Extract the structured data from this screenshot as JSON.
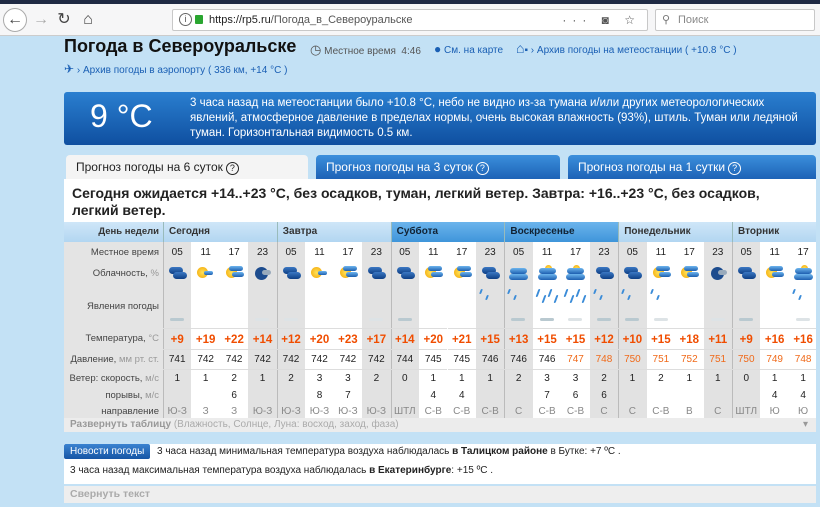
{
  "browser": {
    "url_host": "https://rp5.ru",
    "url_path": "/Погода_в_Североуральске",
    "search_placeholder": "Поиск"
  },
  "header": {
    "title": "Погода в Североуральске",
    "local_time_label": "Местное время",
    "local_time": "4:46",
    "map_link": "См. на карте",
    "station_archive": "Архив погоды на метеостанции ( +10.8 °C )",
    "airport_archive": "Архив погоды в аэропорту ( 336 км, +14 °C )"
  },
  "banner": {
    "temp": "9 °C",
    "text": "3 часа назад на метеостанции было +10.8 °C, небо не видно из-за тумана и/или других метеорологических явлений, атмосферное давление в пределах нормы, очень высокая влажность (93%), штиль. Туман или ледяной туман. Горизонтальная видимость 0.5 км."
  },
  "tabs": [
    {
      "label": "Прогноз погоды на 6 суток",
      "active": true
    },
    {
      "label": "Прогноз погоды на 3 суток",
      "active": false
    },
    {
      "label": "Прогноз погоды на 1 сутки",
      "active": false
    }
  ],
  "summary": "Сегодня ожидается +14..+23 °C, без осадков, туман, легкий ветер. Завтра: +16..+23 °C, без осадков, легкий ветер.",
  "forecast": {
    "labels": {
      "day": "День недели",
      "time": "Местное время",
      "cloud": "Облачность,",
      "cloud_unit": "%",
      "phen": "Явления погоды",
      "temp": "Температура,",
      "temp_unit": "°C",
      "pres": "Давление,",
      "pres_unit": "мм рт. ст.",
      "wind": "Ветер: скорость,",
      "wind_unit": "м/с",
      "gust": "порывы,",
      "gust_unit": "м/с",
      "dir": "направление"
    },
    "days": [
      {
        "name": "Сегодня",
        "cols": 4,
        "weekend": false
      },
      {
        "name": "Завтра",
        "cols": 4,
        "weekend": false
      },
      {
        "name": "Суббота",
        "cols": 4,
        "weekend": true
      },
      {
        "name": "Воскресенье",
        "cols": 4,
        "weekend": true
      },
      {
        "name": "Понедельник",
        "cols": 4,
        "weekend": false
      },
      {
        "name": "Вторник",
        "cols": 3,
        "weekend": false
      }
    ],
    "times": [
      "05",
      "11",
      "17",
      "23",
      "05",
      "11",
      "17",
      "23",
      "05",
      "11",
      "17",
      "23",
      "05",
      "11",
      "17",
      "23",
      "05",
      "11",
      "17",
      "23",
      "05",
      "11",
      "17"
    ],
    "clouds": [
      "cloudy",
      "sun-small-cloud",
      "sun-clouds",
      "night-cloud",
      "cloudy",
      "sun-small-cloud",
      "sun-clouds",
      "cloudy",
      "cloudy",
      "sun-clouds",
      "sun-clouds",
      "cloudy",
      "overcast",
      "overcast-sun",
      "overcast-sun",
      "cloudy",
      "cloudy",
      "sun-clouds",
      "sun-clouds",
      "night-cloud",
      "cloudy",
      "sun-clouds",
      "overcast-sun"
    ],
    "phenomena": [
      "fog",
      "",
      "",
      "light-fog",
      "light-fog",
      "",
      "",
      "light-fog",
      "fog",
      "",
      "",
      "rain",
      "rain-fog",
      "heavy-rain-fog",
      "heavy-rain-light-fog",
      "rain-fog",
      "rain-fog",
      "rain-light-fog",
      "",
      "light-fog",
      "fog",
      "",
      "rain-light-fog"
    ],
    "temps": [
      "+9",
      "+19",
      "+22",
      "+14",
      "+12",
      "+20",
      "+23",
      "+17",
      "+14",
      "+20",
      "+21",
      "+15",
      "+13",
      "+15",
      "+15",
      "+12",
      "+10",
      "+15",
      "+18",
      "+11",
      "+9",
      "+16",
      "+16"
    ],
    "pressure": [
      "741",
      "742",
      "742",
      "742",
      "742",
      "742",
      "742",
      "742",
      "744",
      "745",
      "745",
      "746",
      "746",
      "746",
      "747",
      "748",
      "750",
      "751",
      "752",
      "751",
      "750",
      "749",
      "748"
    ],
    "wind_speed": [
      "1",
      "1",
      "2",
      "1",
      "2",
      "3",
      "3",
      "2",
      "0",
      "1",
      "1",
      "1",
      "2",
      "3",
      "3",
      "2",
      "1",
      "2",
      "1",
      "1",
      "0",
      "1",
      "1"
    ],
    "gusts": [
      "",
      "",
      "6",
      "",
      "",
      "8",
      "7",
      "",
      "",
      "4",
      "4",
      "",
      "",
      "7",
      "6",
      "6",
      "",
      "",
      "",
      "",
      "",
      "4",
      "4"
    ],
    "direction": [
      "Ю-З",
      "З",
      "З",
      "Ю-З",
      "Ю-З",
      "Ю-З",
      "Ю-З",
      "Ю-З",
      "ШТЛ",
      "С-В",
      "С-В",
      "С-В",
      "С",
      "С-В",
      "С-В",
      "С",
      "С",
      "С-В",
      "В",
      "С",
      "ШТЛ",
      "Ю",
      "Ю"
    ],
    "expand_label": "Развернуть таблицу",
    "expand_hint": "(Влажность, Солнце, Луна: восход, заход, фаза)"
  },
  "news": {
    "button": "Новости погоды",
    "line1_a": "3 часа назад минимальная температура воздуха наблюдалась ",
    "line1_b": "в Талицком районе",
    "line1_c": " в Бутке: +7 ºC .",
    "line2_a": "3 часа назад максимальная температура воздуха наблюдалась ",
    "line2_b": "в Екатеринбурге",
    "line2_c": ": +15 ºC .",
    "collapse": "Свернуть текст"
  }
}
